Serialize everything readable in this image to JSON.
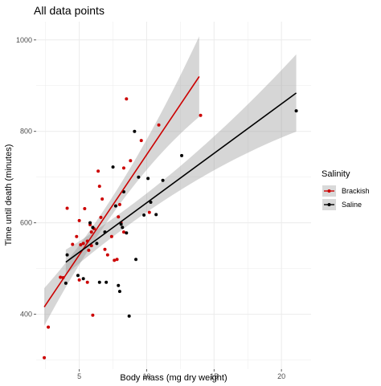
{
  "chart_data": {
    "type": "scatter",
    "title": "All data points",
    "xlabel": "Body mass (mg dry weight)",
    "ylabel": "Time until death (minutes)",
    "xlim": [
      1.8,
      22.2
    ],
    "ylim": [
      280,
      1040
    ],
    "xticks": [
      5,
      10,
      15,
      20
    ],
    "yticks": [
      400,
      600,
      800,
      1000
    ],
    "grid": true,
    "legend": {
      "title": "Salinity",
      "position": "right"
    },
    "series": [
      {
        "name": "Brackish",
        "color": "#cc0000",
        "points": [
          [
            2.4,
            305
          ],
          [
            2.7,
            372
          ],
          [
            3.6,
            481
          ],
          [
            3.8,
            480
          ],
          [
            4.1,
            632
          ],
          [
            4.5,
            553
          ],
          [
            4.8,
            570
          ],
          [
            5.0,
            605
          ],
          [
            5.1,
            552
          ],
          [
            5.0,
            475
          ],
          [
            5.3,
            555
          ],
          [
            5.4,
            631
          ],
          [
            5.6,
            560
          ],
          [
            5.7,
            540
          ],
          [
            5.6,
            470
          ],
          [
            5.8,
            596
          ],
          [
            5.9,
            580
          ],
          [
            5.9,
            550
          ],
          [
            6.0,
            398
          ],
          [
            6.1,
            587
          ],
          [
            6.4,
            713
          ],
          [
            6.5,
            680
          ],
          [
            6.6,
            612
          ],
          [
            6.7,
            652
          ],
          [
            6.9,
            542
          ],
          [
            7.1,
            530
          ],
          [
            7.4,
            570
          ],
          [
            7.6,
            518
          ],
          [
            7.8,
            520
          ],
          [
            7.9,
            613
          ],
          [
            8.0,
            640
          ],
          [
            8.1,
            600
          ],
          [
            8.3,
            720
          ],
          [
            8.3,
            580
          ],
          [
            8.5,
            871
          ],
          [
            8.8,
            736
          ],
          [
            9.6,
            780
          ],
          [
            10.2,
            623
          ],
          [
            10.9,
            814
          ],
          [
            14.0,
            835
          ]
        ],
        "fit": {
          "x": [
            2.4,
            13.9
          ],
          "y": [
            416,
            920
          ]
        }
      },
      {
        "name": "Saline",
        "color": "#000000",
        "points": [
          [
            4.0,
            468
          ],
          [
            4.1,
            530
          ],
          [
            4.9,
            485
          ],
          [
            5.3,
            478
          ],
          [
            5.8,
            600
          ],
          [
            6.0,
            590
          ],
          [
            6.3,
            555
          ],
          [
            6.5,
            470
          ],
          [
            6.9,
            580
          ],
          [
            7.0,
            470
          ],
          [
            7.5,
            722
          ],
          [
            7.7,
            637
          ],
          [
            7.9,
            463
          ],
          [
            8.0,
            450
          ],
          [
            8.1,
            597
          ],
          [
            8.2,
            590
          ],
          [
            8.3,
            668
          ],
          [
            8.5,
            578
          ],
          [
            8.7,
            396
          ],
          [
            9.1,
            800
          ],
          [
            9.2,
            520
          ],
          [
            9.4,
            700
          ],
          [
            9.8,
            617
          ],
          [
            10.1,
            697
          ],
          [
            10.3,
            645
          ],
          [
            10.7,
            618
          ],
          [
            11.2,
            693
          ],
          [
            12.6,
            747
          ],
          [
            21.1,
            845
          ]
        ],
        "fit": {
          "x": [
            4.0,
            21.1
          ],
          "y": [
            514,
            884
          ]
        }
      }
    ]
  }
}
